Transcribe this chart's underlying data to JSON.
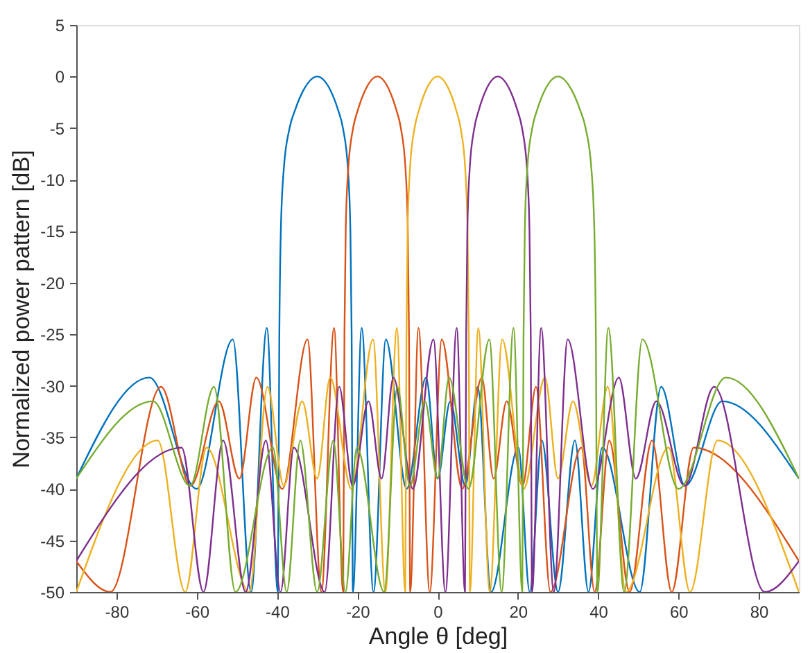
{
  "chart_data": {
    "type": "line",
    "xlabel": "Angle θ [deg]",
    "ylabel": "Normalized power pattern [dB]",
    "xlim": [
      -90,
      90
    ],
    "xticks": [
      -80,
      -60,
      -40,
      -20,
      0,
      20,
      40,
      60,
      80
    ],
    "ylim": [
      -50,
      5
    ],
    "yticks": [
      -50,
      -45,
      -40,
      -35,
      -30,
      -25,
      -20,
      -15,
      -10,
      -5,
      0,
      5
    ],
    "grid": false,
    "marker": "none",
    "line_style": "solid",
    "series": [
      {
        "color": "#0072bd",
        "x": [
          -90,
          -71.8,
          -60.0,
          -51.0,
          -46.47,
          -42.53,
          -39.79,
          -39.42,
          -39.05,
          -38.32,
          -36.87,
          -35.45,
          -33.37,
          -30,
          -26.74,
          -24.83,
          -23.58,
          -22.33,
          -21.72,
          -21.41,
          -21.1,
          -18.91,
          -15.96,
          -12.89,
          -7.7,
          -2.87,
          0,
          3.15,
          6.89,
          10.02,
          13.3,
          20.12,
          22.95,
          25.97,
          30,
          34.2,
          37.59,
          41.0,
          50.35,
          55.69,
          61.64,
          70.9,
          90
        ],
        "values": [
          -39,
          -29.2,
          -40,
          -25.5,
          -50,
          -24.4,
          -50,
          -25,
          -15,
          -9,
          -5,
          -3.2,
          -1.3,
          0,
          -1.3,
          -3.2,
          -5,
          -9,
          -15,
          -25,
          -50,
          -24.4,
          -50,
          -25.5,
          -40,
          -29.2,
          -39,
          -31.5,
          -39.7,
          -30.1,
          -50,
          -36,
          -50,
          -35.3,
          -50,
          -35.3,
          -50,
          -36,
          -50,
          -30.1,
          -39.7,
          -31.5,
          -39
        ]
      },
      {
        "color": "#d95319",
        "x": [
          -90,
          -81.5,
          -68.9,
          -61.52,
          -54.49,
          -49.38,
          -45.15,
          -38.68,
          -32.41,
          -28.95,
          -25.79,
          -23.52,
          -23.2,
          -22.89,
          -22.27,
          -21.04,
          -19.82,
          -18.0,
          -15,
          -12.06,
          -10.31,
          -9.15,
          -7.99,
          -7.41,
          -7.12,
          -6.83,
          -4.76,
          -1.95,
          1.03,
          6.14,
          11.01,
          13.95,
          17.22,
          21.16,
          24.52,
          28.1,
          35.8,
          39.12,
          42.77,
          47.82,
          53.42,
          58.32,
          63.77,
          90
        ],
        "values": [
          -47,
          -50,
          -30.1,
          -39.7,
          -31.5,
          -39,
          -29.2,
          -40,
          -25.5,
          -50,
          -24.4,
          -50,
          -25,
          -15,
          -9,
          -5,
          -3.2,
          -1.3,
          0,
          -1.3,
          -3.2,
          -5,
          -9,
          -15,
          -25,
          -50,
          -24.4,
          -50,
          -25.5,
          -40,
          -29.2,
          -39,
          -31.5,
          -39.7,
          -30.1,
          -50,
          -36,
          -50,
          -35.3,
          -50,
          -35.3,
          -50,
          -36,
          -47
        ]
      },
      {
        "color": "#edb120",
        "x": [
          -90,
          -69.71,
          -62.87,
          -57.55,
          -46.89,
          -42.38,
          -38.32,
          -33.71,
          -30,
          -26.74,
          -21.47,
          -16.08,
          -13.0,
          -10.14,
          -8.05,
          -7.76,
          -7.47,
          -6.89,
          -5.74,
          -4.59,
          -2.87,
          0,
          2.87,
          4.59,
          5.74,
          6.89,
          7.47,
          7.76,
          8.05,
          10.14,
          13.0,
          16.08,
          21.47,
          26.74,
          30,
          33.71,
          38.32,
          42.38,
          46.89,
          57.55,
          62.87,
          69.71,
          90
        ],
        "values": [
          -50,
          -35.3,
          -50,
          -36,
          -50,
          -30.1,
          -39.7,
          -31.5,
          -39,
          -29.2,
          -40,
          -25.5,
          -50,
          -24.4,
          -50,
          -25,
          -15,
          -9,
          -5,
          -3.2,
          -1.3,
          0,
          -1.3,
          -3.2,
          -5,
          -9,
          -15,
          -25,
          -50,
          -24.4,
          -50,
          -25.5,
          -40,
          -29.2,
          -39,
          -31.5,
          -39.7,
          -30.1,
          -50,
          -36,
          -50,
          -35.3,
          -50
        ]
      },
      {
        "color": "#7e2f8e",
        "x": [
          -90,
          -63.77,
          -58.32,
          -53.42,
          -47.82,
          -42.77,
          -39.12,
          -35.8,
          -28.1,
          -24.52,
          -21.16,
          -17.22,
          -13.95,
          -11.01,
          -6.14,
          -1.03,
          1.95,
          4.76,
          6.83,
          7.12,
          7.41,
          7.99,
          9.15,
          10.31,
          12.06,
          15,
          18.0,
          19.82,
          21.04,
          22.27,
          22.89,
          23.2,
          23.52,
          25.79,
          28.95,
          32.41,
          38.68,
          45.15,
          49.38,
          54.49,
          61.52,
          68.9,
          81.5,
          90
        ],
        "values": [
          -47,
          -36,
          -50,
          -35.3,
          -50,
          -35.3,
          -50,
          -36,
          -50,
          -30.1,
          -39.7,
          -31.5,
          -39,
          -29.2,
          -40,
          -25.5,
          -50,
          -24.4,
          -50,
          -25,
          -15,
          -9,
          -5,
          -3.2,
          -1.3,
          0,
          -1.3,
          -3.2,
          -5,
          -9,
          -15,
          -25,
          -50,
          -24.4,
          -50,
          -25.5,
          -40,
          -29.2,
          -39,
          -31.5,
          -39.7,
          -30.1,
          -50,
          -47
        ]
      },
      {
        "color": "#77ac30",
        "x": [
          -90,
          -70.9,
          -61.64,
          -55.69,
          -50.35,
          -41.0,
          -37.59,
          -34.2,
          -30,
          -25.97,
          -22.95,
          -20.12,
          -13.3,
          -10.02,
          -6.89,
          -3.15,
          0,
          2.87,
          7.7,
          12.89,
          15.96,
          18.91,
          21.1,
          21.41,
          21.72,
          22.33,
          23.58,
          24.83,
          26.74,
          30,
          33.37,
          35.45,
          36.87,
          38.32,
          39.05,
          39.42,
          39.79,
          42.53,
          46.47,
          51.0,
          60.0,
          71.8,
          90
        ],
        "values": [
          -39,
          -31.5,
          -39.7,
          -30.1,
          -50,
          -36,
          -50,
          -35.3,
          -50,
          -35.3,
          -50,
          -36,
          -50,
          -30.1,
          -39.7,
          -31.5,
          -39,
          -29.2,
          -40,
          -25.5,
          -50,
          -24.4,
          -50,
          -25,
          -15,
          -9,
          -5,
          -3.2,
          -1.3,
          0,
          -1.3,
          -3.2,
          -5,
          -9,
          -15,
          -25,
          -50,
          -24.4,
          -50,
          -25.5,
          -40,
          -29.2,
          -39
        ]
      }
    ]
  }
}
